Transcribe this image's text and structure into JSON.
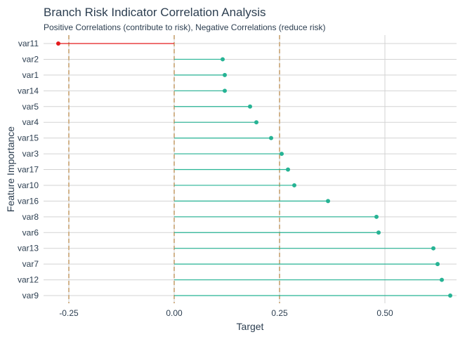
{
  "chart_data": {
    "type": "lollipop",
    "orientation": "horizontal",
    "title": "Branch Risk Indicator Correlation Analysis",
    "subtitle": "Positive Correlations (contribute to risk), Negative Correlations (reduce risk)",
    "xlabel": "Target",
    "ylabel": "Feature Importance",
    "xlim": [
      -0.31,
      0.67
    ],
    "x_ticks": [
      -0.25,
      0.0,
      0.25,
      0.5
    ],
    "x_tick_labels": [
      "-0.25",
      "0.00",
      "0.25",
      "0.50"
    ],
    "reference_lines": [
      -0.25,
      0.0,
      0.25
    ],
    "grid": true,
    "legend": "none",
    "colors": {
      "positive": "#26b394",
      "negative": "#e41a1c",
      "reference_line": "#d2b48c",
      "grid": "#d3d3d3",
      "text": "#2c3e50"
    },
    "categories": [
      "var11",
      "var2",
      "var1",
      "var14",
      "var5",
      "var4",
      "var15",
      "var3",
      "var17",
      "var10",
      "var16",
      "var8",
      "var6",
      "var13",
      "var7",
      "var12",
      "var9"
    ],
    "values": [
      -0.275,
      0.115,
      0.12,
      0.12,
      0.18,
      0.195,
      0.23,
      0.255,
      0.27,
      0.285,
      0.365,
      0.48,
      0.485,
      0.615,
      0.625,
      0.635,
      0.655
    ]
  }
}
